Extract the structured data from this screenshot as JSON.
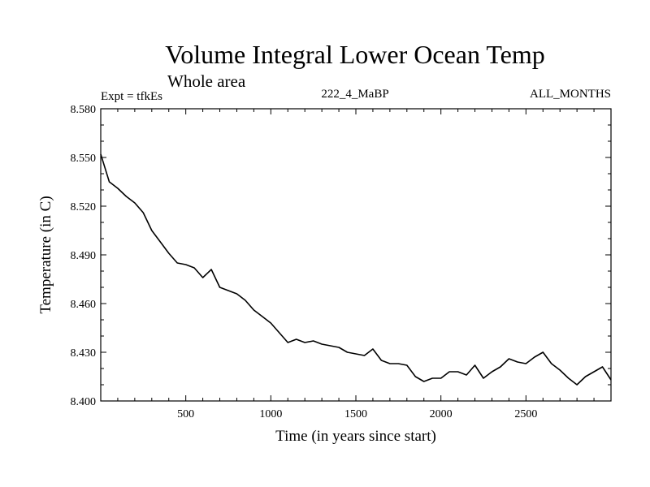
{
  "chart_data": {
    "type": "line",
    "title": "Volume Integral Lower Ocean Temp",
    "subtitle": "Whole area",
    "expt_label": "Expt = tfkEs",
    "run_label": "222_4_MaBP",
    "months_label": "ALL_MONTHS",
    "xlabel": "Time (in years since start)",
    "ylabel": "Temperature (in C)",
    "xlim": [
      0,
      3000
    ],
    "ylim": [
      8.4,
      8.58
    ],
    "x_ticks": [
      "500",
      "1000",
      "1500",
      "2000",
      "2500"
    ],
    "y_ticks": [
      "8.400",
      "8.430",
      "8.460",
      "8.490",
      "8.520",
      "8.550",
      "8.580"
    ],
    "grid": false,
    "series": [
      {
        "x": [
          0,
          50,
          100,
          150,
          200,
          250,
          300,
          350,
          400,
          450,
          500,
          550,
          600,
          650,
          700,
          750,
          800,
          850,
          900,
          950,
          1000,
          1050,
          1100,
          1150,
          1200,
          1250,
          1300,
          1350,
          1400,
          1450,
          1500,
          1550,
          1600,
          1650,
          1700,
          1750,
          1800,
          1850,
          1900,
          1950,
          2000,
          2050,
          2100,
          2150,
          2200,
          2250,
          2300,
          2350,
          2400,
          2450,
          2500,
          2550,
          2600,
          2650,
          2700,
          2750,
          2800,
          2850,
          2900,
          2950,
          3000
        ],
        "y": [
          8.552,
          8.535,
          8.531,
          8.526,
          8.522,
          8.516,
          8.505,
          8.498,
          8.491,
          8.485,
          8.484,
          8.482,
          8.476,
          8.481,
          8.47,
          8.468,
          8.466,
          8.462,
          8.456,
          8.452,
          8.448,
          8.442,
          8.436,
          8.438,
          8.436,
          8.437,
          8.435,
          8.434,
          8.433,
          8.43,
          8.429,
          8.428,
          8.432,
          8.425,
          8.423,
          8.423,
          8.422,
          8.415,
          8.412,
          8.414,
          8.414,
          8.418,
          8.418,
          8.416,
          8.422,
          8.414,
          8.418,
          8.421,
          8.426,
          8.424,
          8.423,
          8.427,
          8.43,
          8.423,
          8.419,
          8.414,
          8.41,
          8.415,
          8.418,
          8.421,
          8.413
        ]
      }
    ]
  }
}
